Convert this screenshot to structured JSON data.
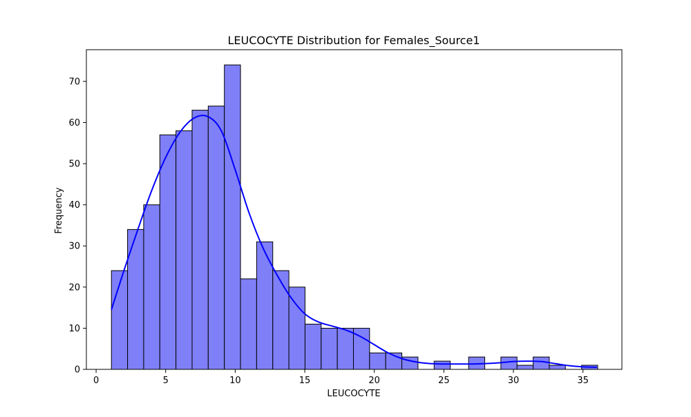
{
  "chart_data": {
    "type": "bar",
    "title": "LEUCOCYTE Distribution for Females_Source1",
    "xlabel": "LEUCOCYTE",
    "ylabel": "Frequency",
    "xlim": [
      -0.7,
      37.8
    ],
    "ylim": [
      0,
      77.7
    ],
    "xticks": [
      0,
      5,
      10,
      15,
      20,
      25,
      30,
      35
    ],
    "yticks": [
      0,
      10,
      20,
      30,
      40,
      50,
      60,
      70
    ],
    "grid": false,
    "bar_color": "#7f7ff7",
    "bar_edge_color": "#000000",
    "kde_color": "#0000ff",
    "bins": [
      {
        "x0": 1.1,
        "x1": 2.26,
        "count": 24
      },
      {
        "x0": 2.26,
        "x1": 3.42,
        "count": 34
      },
      {
        "x0": 3.42,
        "x1": 4.58,
        "count": 40
      },
      {
        "x0": 4.58,
        "x1": 5.74,
        "count": 57
      },
      {
        "x0": 5.74,
        "x1": 6.9,
        "count": 58
      },
      {
        "x0": 6.9,
        "x1": 8.06,
        "count": 63
      },
      {
        "x0": 8.06,
        "x1": 9.22,
        "count": 64
      },
      {
        "x0": 9.22,
        "x1": 10.38,
        "count": 74
      },
      {
        "x0": 10.38,
        "x1": 11.54,
        "count": 22
      },
      {
        "x0": 11.54,
        "x1": 12.7,
        "count": 31
      },
      {
        "x0": 12.7,
        "x1": 13.86,
        "count": 24
      },
      {
        "x0": 13.86,
        "x1": 15.02,
        "count": 20
      },
      {
        "x0": 15.02,
        "x1": 16.18,
        "count": 11
      },
      {
        "x0": 16.18,
        "x1": 17.34,
        "count": 10
      },
      {
        "x0": 17.34,
        "x1": 18.5,
        "count": 10
      },
      {
        "x0": 18.5,
        "x1": 19.66,
        "count": 10
      },
      {
        "x0": 19.66,
        "x1": 20.82,
        "count": 4
      },
      {
        "x0": 20.82,
        "x1": 21.98,
        "count": 4
      },
      {
        "x0": 21.98,
        "x1": 23.14,
        "count": 3
      },
      {
        "x0": 24.3,
        "x1": 25.46,
        "count": 2
      },
      {
        "x0": 26.78,
        "x1": 27.94,
        "count": 3
      },
      {
        "x0": 29.1,
        "x1": 30.26,
        "count": 3
      },
      {
        "x0": 30.26,
        "x1": 31.42,
        "count": 1
      },
      {
        "x0": 31.42,
        "x1": 32.58,
        "count": 3
      },
      {
        "x0": 32.58,
        "x1": 33.74,
        "count": 1
      },
      {
        "x0": 34.9,
        "x1": 36.06,
        "count": 1
      }
    ],
    "kde": {
      "x": [
        1.1,
        2,
        3,
        4,
        5,
        6,
        7,
        8,
        9,
        10,
        11,
        12,
        13,
        14,
        15,
        16,
        17,
        18,
        19,
        20,
        21,
        22,
        23,
        24,
        25,
        26,
        27,
        28,
        29,
        30,
        31,
        32,
        33,
        34,
        35,
        36
      ],
      "y": [
        14.5,
        24,
        34,
        43.5,
        51.5,
        57.5,
        61,
        61.5,
        58,
        48.5,
        38,
        29.5,
        23,
        17.5,
        13.5,
        11.5,
        10.5,
        9.5,
        8,
        6,
        4,
        2.6,
        1.8,
        1.4,
        1.3,
        1.3,
        1.3,
        1.4,
        1.6,
        1.9,
        2.0,
        1.9,
        1.4,
        0.9,
        0.6,
        0.5
      ]
    }
  }
}
